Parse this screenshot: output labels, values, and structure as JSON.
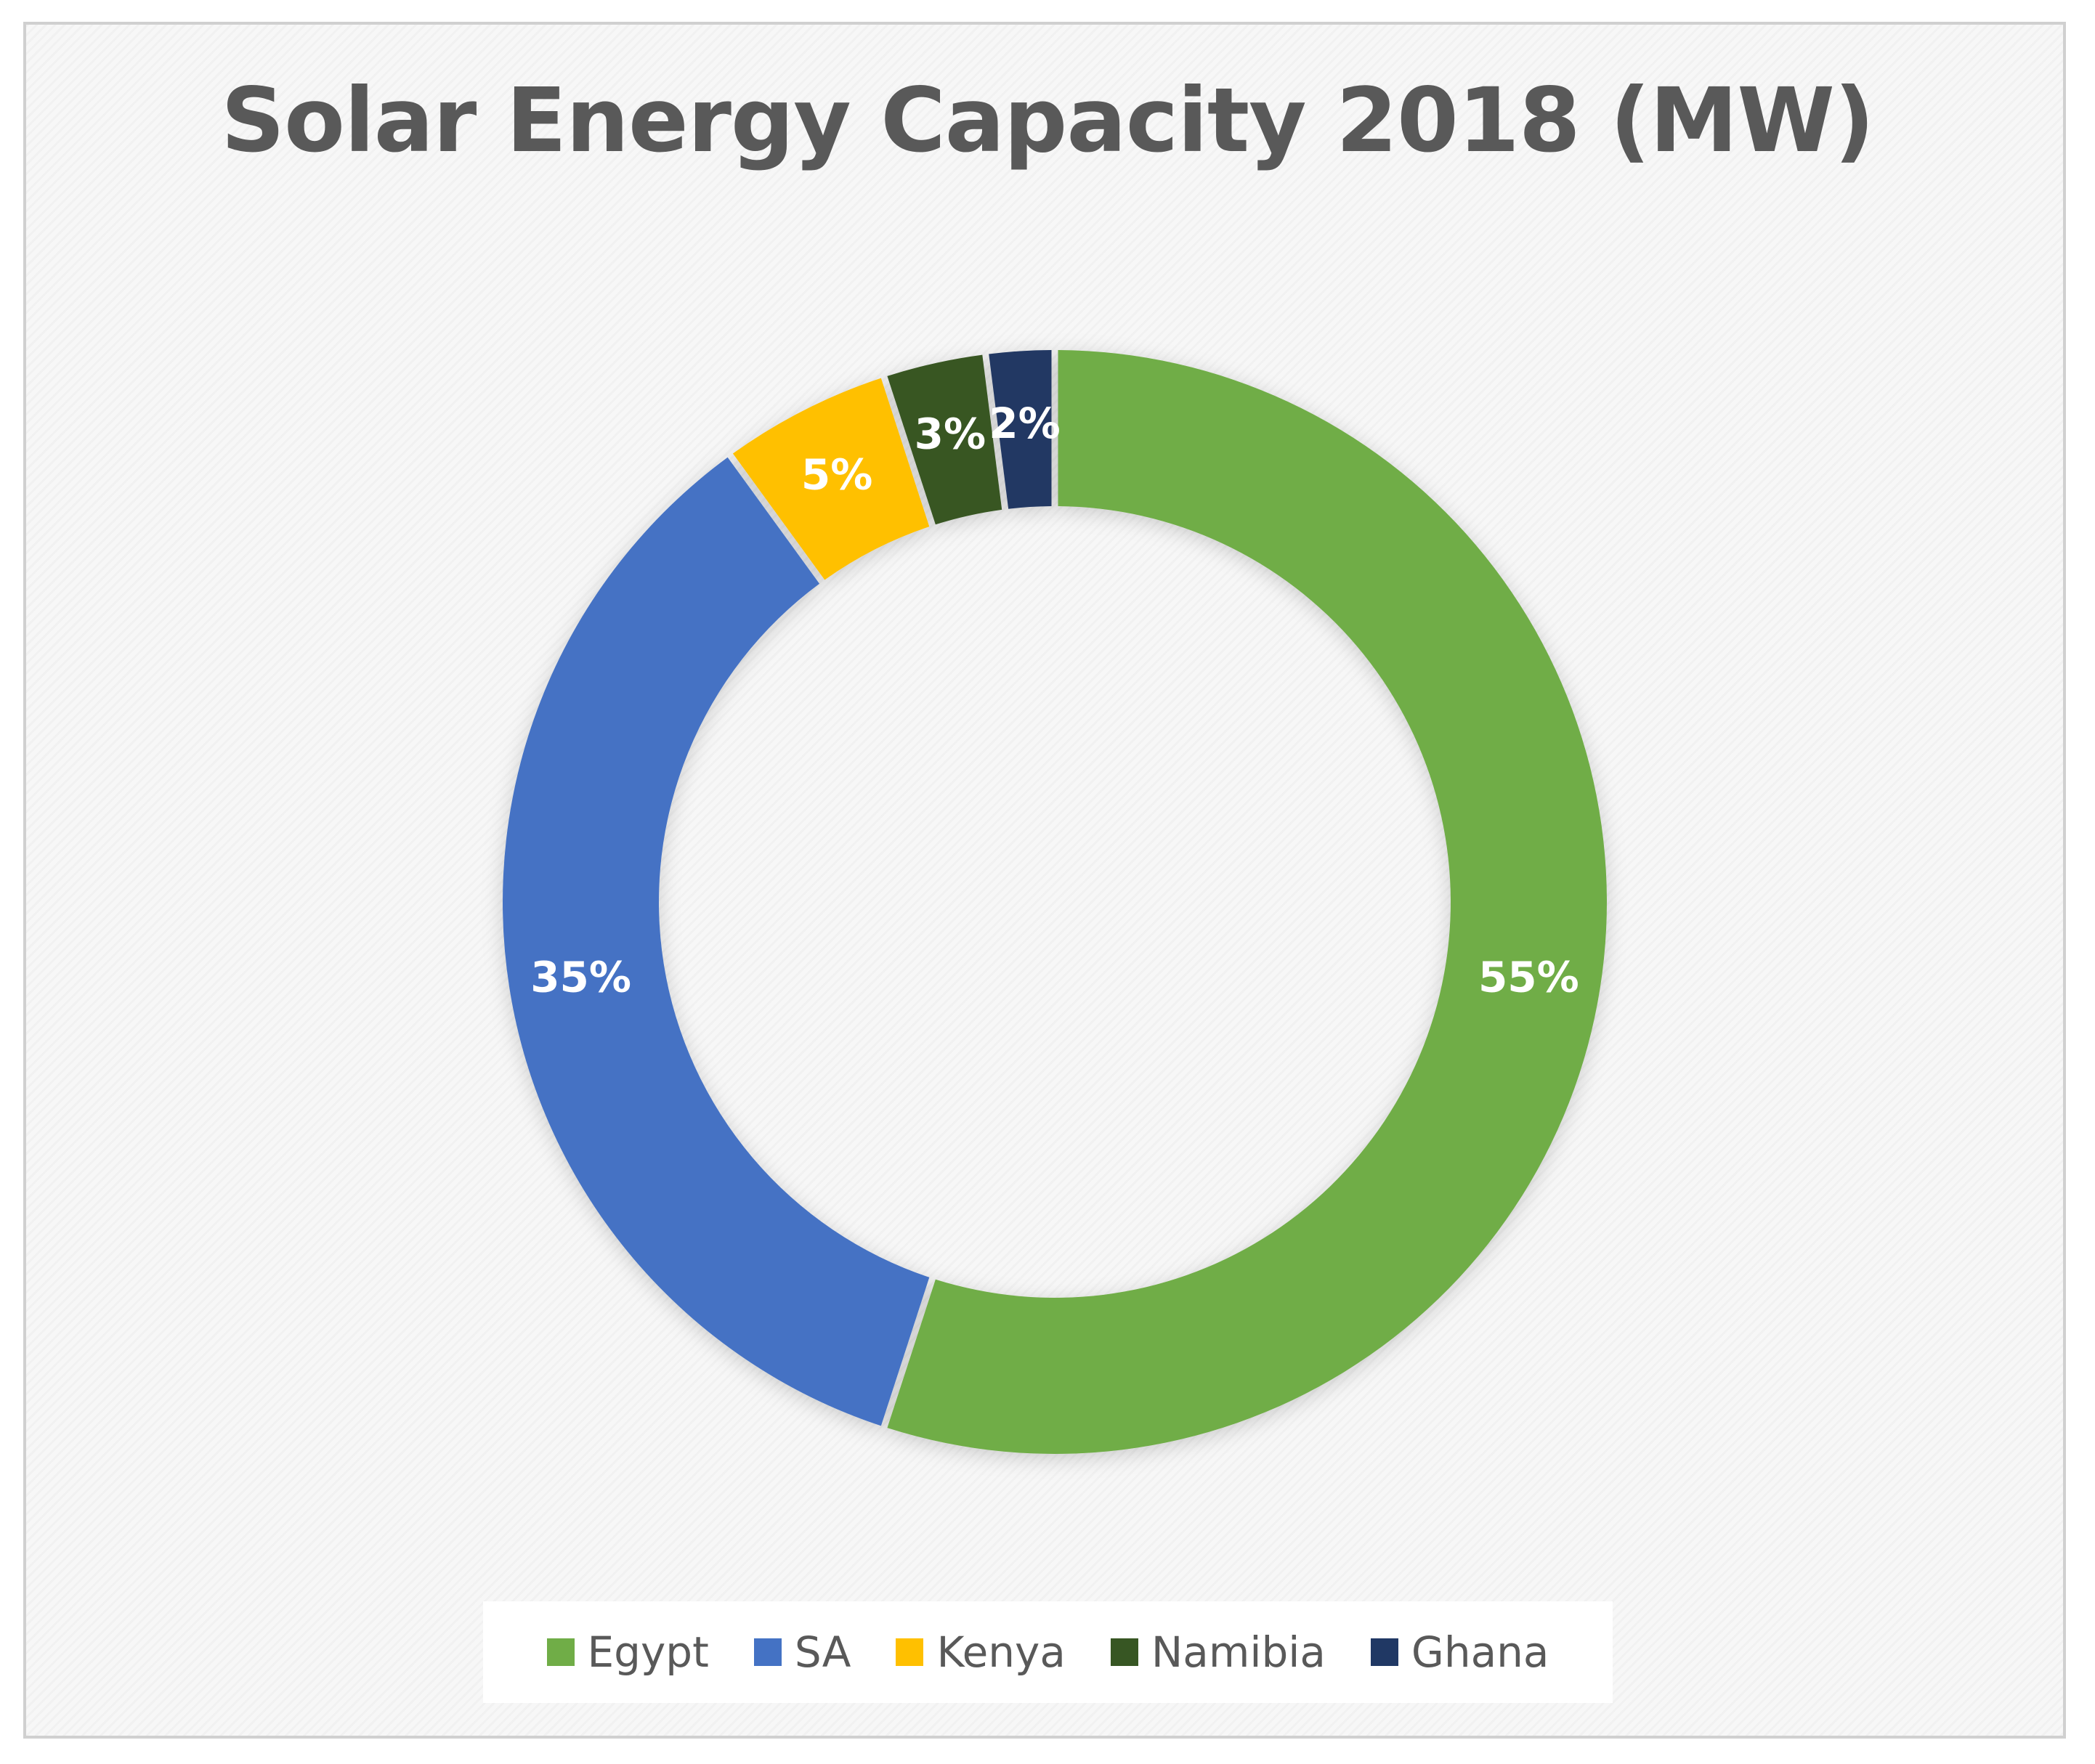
{
  "chart_data": {
    "type": "pie",
    "title": "Solar Energy Capacity 2018 (MW)",
    "categories": [
      "Egypt",
      "SA",
      "Kenya",
      "Namibia",
      "Ghana"
    ],
    "values": [
      55,
      35,
      5,
      3,
      2
    ],
    "data_labels": [
      "55%",
      "35%",
      "5%",
      "3%",
      "2%"
    ],
    "colors": [
      "#70AD47",
      "#4472C4",
      "#FFC000",
      "#375623",
      "#203864"
    ],
    "legend": "bottom",
    "legend_items": [
      {
        "label": "Egypt",
        "color": "#70AD47"
      },
      {
        "label": "SA",
        "color": "#4472C4"
      },
      {
        "label": "Kenya",
        "color": "#FFC000"
      },
      {
        "label": "Namibia",
        "color": "#375623"
      },
      {
        "label": "Ghana",
        "color": "#203864"
      }
    ]
  }
}
